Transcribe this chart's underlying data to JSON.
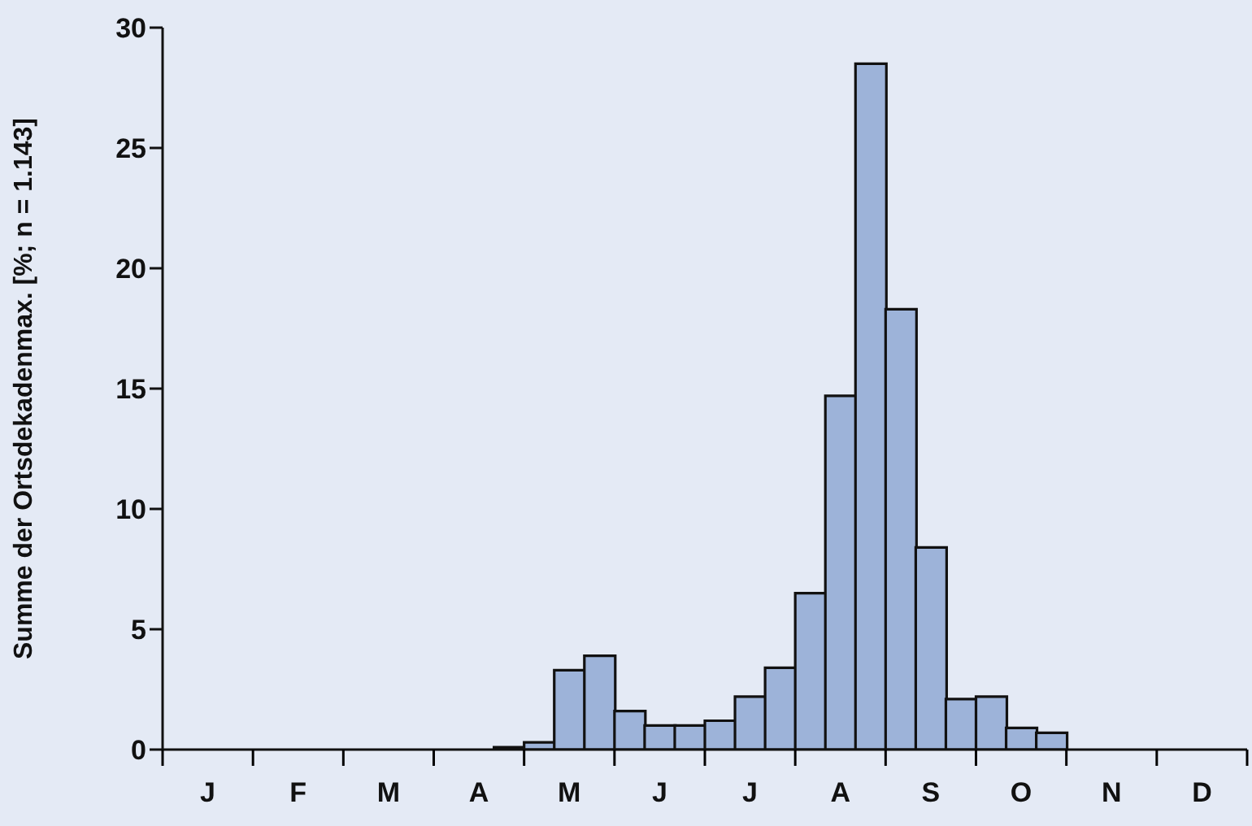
{
  "chart_data": {
    "type": "bar",
    "ylabel": "Summe der Ortsdekadenmax.  [%; n = 1.143]",
    "categories": [
      null,
      "J",
      null,
      null,
      "F",
      null,
      null,
      "M",
      null,
      null,
      "A",
      null,
      null,
      "M",
      null,
      null,
      "J",
      null,
      null,
      "J",
      null,
      null,
      "A",
      null,
      null,
      "S",
      null,
      null,
      "O",
      null,
      null,
      "N",
      null,
      null,
      "D",
      null
    ],
    "values": [
      0,
      0,
      0,
      0,
      0,
      0,
      0,
      0,
      0,
      0,
      0,
      0.1,
      0.3,
      3.3,
      3.9,
      1.6,
      1.0,
      1.0,
      1.2,
      2.2,
      3.4,
      6.5,
      14.7,
      28.5,
      18.3,
      8.4,
      2.1,
      2.2,
      0.9,
      0.7,
      0,
      0,
      0,
      0,
      0,
      0
    ],
    "color": "#9db3d9",
    "ylim": [
      0,
      30
    ],
    "yticks": [
      0,
      5,
      10,
      15,
      20,
      25,
      30
    ]
  }
}
